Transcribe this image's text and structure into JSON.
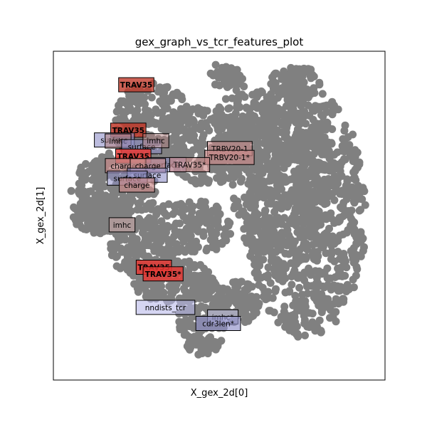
{
  "chart_data": {
    "type": "scatter",
    "title": "gex_graph_vs_tcr_features_plot",
    "xlabel": "X_gex_2d[0]",
    "ylabel": "X_gex_2d[1]",
    "xticks": [],
    "yticks": [],
    "xlim": [
      0,
      1
    ],
    "ylim": [
      0,
      1
    ],
    "point_color": "#808080",
    "point_clouds_note": "Dense grey point cloud; individual cell coordinates estimated as region hulls",
    "labels": [
      {
        "text": "TRAV35",
        "x": 0.25,
        "y": 0.898,
        "color": "#c0392b",
        "alpha": 0.8,
        "bold": true
      },
      {
        "text": "TRAV35",
        "x": 0.226,
        "y": 0.76,
        "color": "#c0392b",
        "alpha": 0.85,
        "bold": true
      },
      {
        "text": "surface",
        "x": 0.184,
        "y": 0.73,
        "color": "#8f8fc8",
        "alpha": 0.6,
        "bold": false
      },
      {
        "text": "imhc",
        "x": 0.195,
        "y": 0.727,
        "color": "#b07f7f",
        "alpha": 0.55,
        "bold": false
      },
      {
        "text": "surface",
        "x": 0.266,
        "y": 0.71,
        "color": "#8f8fc8",
        "alpha": 0.6,
        "bold": false
      },
      {
        "text": "imhc",
        "x": 0.309,
        "y": 0.728,
        "color": "#b07f7f",
        "alpha": 0.5,
        "bold": false
      },
      {
        "text": "TRAV35",
        "x": 0.241,
        "y": 0.681,
        "color": "#e53935",
        "alpha": 0.85,
        "bold": true
      },
      {
        "text": "surface",
        "x": 0.34,
        "y": 0.655,
        "color": "#8f8fc8",
        "alpha": 0.55,
        "bold": false
      },
      {
        "text": "charge*",
        "x": 0.217,
        "y": 0.652,
        "color": "#c98a8a",
        "alpha": 0.7,
        "bold": false
      },
      {
        "text": "charge",
        "x": 0.285,
        "y": 0.652,
        "color": "#c98a8a",
        "alpha": 0.65,
        "bold": false
      },
      {
        "text": "surface",
        "x": 0.283,
        "y": 0.623,
        "color": "#8f8fc8",
        "alpha": 0.6,
        "bold": false
      },
      {
        "text": "surface",
        "x": 0.223,
        "y": 0.614,
        "color": "#8f8fc8",
        "alpha": 0.55,
        "bold": false
      },
      {
        "text": "charge",
        "x": 0.252,
        "y": 0.593,
        "color": "#c98a8a",
        "alpha": 0.7,
        "bold": false
      },
      {
        "text": "TRBV20-1",
        "x": 0.532,
        "y": 0.704,
        "color": "#c98a8a",
        "alpha": 0.6,
        "bold": false
      },
      {
        "text": "TRBV20-1*",
        "x": 0.531,
        "y": 0.677,
        "color": "#c98a8a",
        "alpha": 0.7,
        "bold": false
      },
      {
        "text": "TRAV35*",
        "x": 0.411,
        "y": 0.655,
        "color": "#c98a8a",
        "alpha": 0.65,
        "bold": false
      },
      {
        "text": "imhc",
        "x": 0.207,
        "y": 0.472,
        "color": "#c9a9a9",
        "alpha": 0.6,
        "bold": false
      },
      {
        "text": "TRAV35",
        "x": 0.303,
        "y": 0.343,
        "color": "#e53935",
        "alpha": 0.85,
        "bold": true
      },
      {
        "text": "TRAV35*",
        "x": 0.331,
        "y": 0.323,
        "color": "#e53935",
        "alpha": 0.85,
        "bold": true
      },
      {
        "text": "nndists_tcr",
        "x": 0.338,
        "y": 0.221,
        "color": "#b9b9ea",
        "alpha": 0.6,
        "bold": false
      },
      {
        "text": "imhc*",
        "x": 0.511,
        "y": 0.192,
        "color": "#c9c9ea",
        "alpha": 0.55,
        "bold": false
      },
      {
        "text": "cdr3len*",
        "x": 0.497,
        "y": 0.172,
        "color": "#8f8fc8",
        "alpha": 0.65,
        "bold": false
      }
    ]
  }
}
